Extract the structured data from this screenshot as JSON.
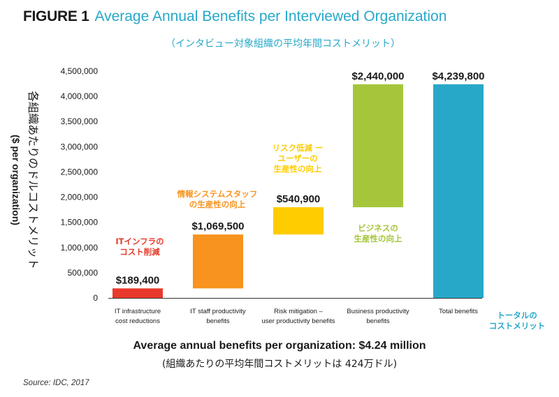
{
  "figure": {
    "label": "FIGURE 1",
    "title": "Average Annual Benefits per Interviewed Organization",
    "subtitle_jp": "（インタビュー対象組織の平均年間コストメリット）"
  },
  "y_axis": {
    "label_jp": "各組織あたりのドルコストメリット",
    "label_en": "($ per organization)"
  },
  "annotations": {
    "it_infra": [
      "ITインフラの",
      "コスト削減"
    ],
    "it_staff": [
      "情報システムスタッフ",
      "の生産性の向上"
    ],
    "risk": [
      "リスク低減 ー",
      "ユーザーの",
      "生産性の向上"
    ],
    "business": [
      "ビジネスの",
      "生産性の向上"
    ],
    "total": [
      "トータルの",
      "コストメリット"
    ]
  },
  "summary": {
    "en": "Average annual benefits per organization: $4.24 million",
    "jp": "(組織あたりの平均年間コストメリットは 424万ドル)"
  },
  "source": "Source: IDC, 2017",
  "colors": {
    "it_infra": "#e8392a",
    "it_staff": "#f7931e",
    "risk": "#ffcc00",
    "business": "#a5c63b",
    "total": "#27a8c9",
    "title_accent": "#27a8c9",
    "axis_text": "#1a1a1a"
  },
  "chart_data": {
    "type": "bar",
    "subtype": "waterfall",
    "categories": [
      [
        "IT infrastructure",
        "cost reductions"
      ],
      [
        "IT staff productivity",
        "benefits"
      ],
      [
        "Risk mitigation –",
        "user productivity benefits"
      ],
      [
        "Business productivity",
        "benefits"
      ],
      [
        "Total benefits"
      ]
    ],
    "series": [
      {
        "values": [
          189400,
          1069500,
          540900,
          2440000,
          4239800
        ],
        "bases": [
          0,
          189400,
          1258900,
          1799800,
          0
        ],
        "labels": [
          "$189,400",
          "$1,069,500",
          "$540,900",
          "$2,440,000",
          "$4,239,800"
        ]
      }
    ],
    "y_ticks": [
      0,
      500000,
      1000000,
      1500000,
      2000000,
      2500000,
      3000000,
      3500000,
      4000000,
      4500000
    ],
    "y_tick_labels": [
      "0",
      "500,000",
      "1,000,000",
      "1,500,000",
      "2,000,000",
      "2,500,000",
      "3,000,000",
      "3,500,000",
      "4,000,000",
      "4,500,000"
    ],
    "ylim": [
      0,
      4500000
    ],
    "grid": false,
    "legend": "none"
  }
}
